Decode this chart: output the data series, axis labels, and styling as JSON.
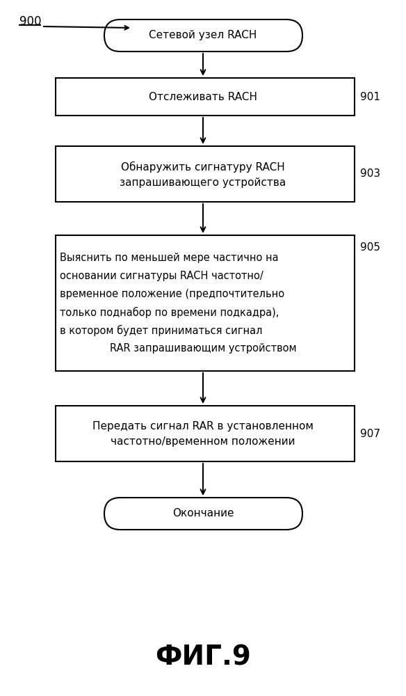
{
  "title": "ФИГ.9",
  "label_900": "900",
  "label_901": "901",
  "label_903": "903",
  "label_905": "905",
  "label_907": "907",
  "node_start": "Сетевой узел RACH",
  "node_901": "Отслеживать RACH",
  "node_903_line1": "Обнаружить сигнатуру RACH",
  "node_903_line2": "запрашивающего устройства",
  "node_905_line1": "Выяснить по меньшей мере частично на",
  "node_905_line2": "основании сигнатуры RACH частотно/",
  "node_905_line3": "временное положение (предпочтительно",
  "node_905_line4": "только поднабор по времени подкадра),",
  "node_905_line5": "в котором будет приниматься сигнал",
  "node_905_line6": "RAR запрашивающим устройством",
  "node_907_line1": "Передать сигнал RAR в установленном",
  "node_907_line2": "частотно/временном положении",
  "node_end": "Окончание",
  "bg_color": "#ffffff",
  "box_color": "#000000",
  "text_color": "#000000",
  "font_size_main": 11,
  "font_size_label": 11,
  "font_size_title": 28
}
